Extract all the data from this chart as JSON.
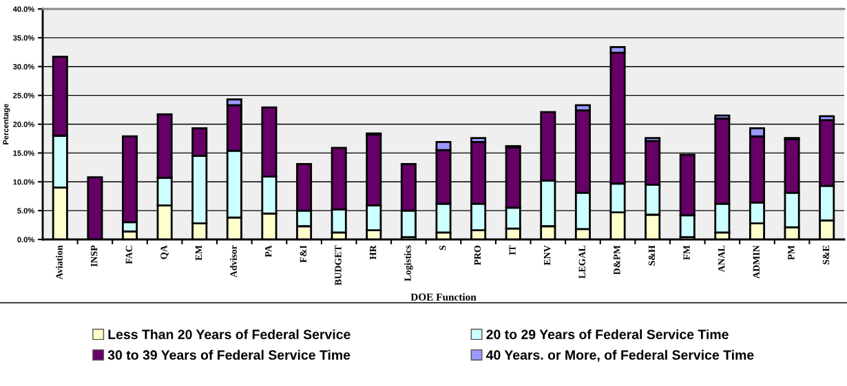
{
  "chart_data": {
    "type": "bar",
    "stacked": true,
    "xlabel": "DOE Function",
    "ylabel": "Percentage",
    "categories": [
      "Aviation",
      "INSP",
      "FAC",
      "QA",
      "EM",
      "Advisor",
      "PA",
      "F&I",
      "BUDGET",
      "HR",
      "Logistics",
      "S",
      "PRO",
      "IT",
      "ENV",
      "LEGAL",
      "D&PM",
      "S&H",
      "FM",
      "ANAL",
      "ADMIN",
      "PM",
      "S&E"
    ],
    "series": [
      {
        "name": "Less Than 20 Years of Federal Service",
        "color": "#ffffcc",
        "values": [
          9.0,
          0,
          1.4,
          5.9,
          2.8,
          3.8,
          4.5,
          2.3,
          1.2,
          1.6,
          0.4,
          1.2,
          1.6,
          1.9,
          2.3,
          1.8,
          4.7,
          4.3,
          0.4,
          1.2,
          2.8,
          2.1,
          3.3
        ]
      },
      {
        "name": "20 to 29 Years of Federal Service Time",
        "color": "#ccffff",
        "values": [
          9.0,
          0,
          1.6,
          4.8,
          11.7,
          11.6,
          6.4,
          2.7,
          4.0,
          4.3,
          4.6,
          5.0,
          4.6,
          3.6,
          7.9,
          6.3,
          5.0,
          5.2,
          3.8,
          5.0,
          3.6,
          6.0,
          6.0
        ]
      },
      {
        "name": "30 to 39 Years of Federal Service Time",
        "color": "#660066",
        "values": [
          13.7,
          10.8,
          14.9,
          11.0,
          4.8,
          7.9,
          12.0,
          8.1,
          10.7,
          12.3,
          8.1,
          9.3,
          10.7,
          10.5,
          11.9,
          14.3,
          22.7,
          7.6,
          10.5,
          14.8,
          11.5,
          9.3,
          11.4
        ]
      },
      {
        "name": "40 Years. or More, of Federal Service Time",
        "color": "#9999ff",
        "values": [
          0,
          0,
          0,
          0,
          0,
          1.0,
          0,
          0,
          0,
          0.2,
          0,
          1.4,
          0.7,
          0.2,
          0,
          0.9,
          1.0,
          0.5,
          0,
          0.5,
          1.4,
          0.2,
          0.7
        ]
      }
    ],
    "ylim": [
      0,
      40
    ],
    "yticks": [
      {
        "value": 0,
        "label": "0.0%"
      },
      {
        "value": 5,
        "label": "5.0%"
      },
      {
        "value": 10,
        "label": "10.0%"
      },
      {
        "value": 15,
        "label": "15.0%"
      },
      {
        "value": 20,
        "label": "20.0%"
      },
      {
        "value": 25,
        "label": "25.0%"
      },
      {
        "value": 30,
        "label": "30.0%"
      },
      {
        "value": 35,
        "label": "35.0%"
      },
      {
        "value": 40,
        "label": "40.0%"
      }
    ],
    "grid": "y",
    "legend": "bottom"
  }
}
